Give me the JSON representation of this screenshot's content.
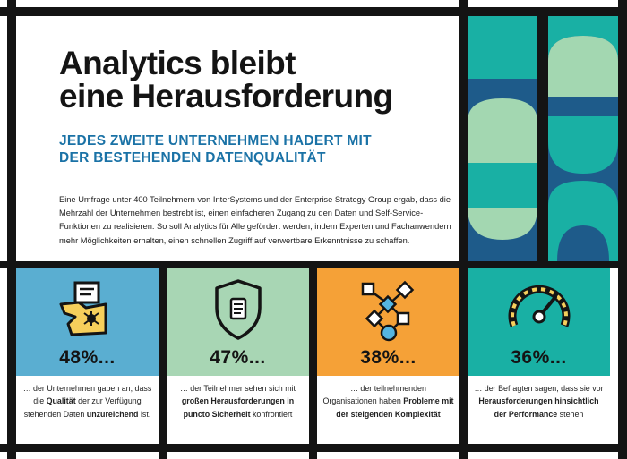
{
  "header": {
    "title_line1": "Analytics bleibt",
    "title_line2": "eine Herausforderung",
    "subtitle_line1": "JEDES ZWEITE UNTERNEHMEN HADERT MIT",
    "subtitle_line2": "DER BESTEHENDEN DATENQUALITÄT",
    "body": "Eine Umfrage unter 400 Teilnehmern von InterSystems und der Enterprise Strategy Group ergab, dass die Mehrzahl der Unternehmen bestrebt ist, einen einfacheren Zugang zu den Daten und Self-Service-Funktionen zu realisieren. So soll Analytics für Alle gefördert werden, indem Experten und Fachanwendern mehr Möglichkeiten erhalten, einen schnellen Zugriff auf verwertbare Erkenntnisse zu schaffen."
  },
  "colors": {
    "blue": "#5aaed1",
    "green": "#a8d6b4",
    "orange": "#f5a137",
    "teal": "#19b0a4",
    "navy": "#1e5b8a",
    "mint": "#a3d7b1",
    "dark": "#141414",
    "icon_yellow": "#f6cf5b",
    "icon_blue": "#56b5e0"
  },
  "stats": [
    {
      "value": "48%...",
      "icon": "chart-bug-icon",
      "desc": [
        {
          "t": "… der Unternehmen gaben an, dass die ",
          "b": false
        },
        {
          "t": "Qualität",
          "b": true
        },
        {
          "t": " der zur Verfügung stehenden Daten ",
          "b": false
        },
        {
          "t": "unzureichend",
          "b": true
        },
        {
          "t": " ist.",
          "b": false
        }
      ]
    },
    {
      "value": "47%...",
      "icon": "shield-document-icon",
      "desc": [
        {
          "t": "… der Teilnehmer sehen sich mit ",
          "b": false
        },
        {
          "t": "großen Herausforderungen in puncto Sicherheit",
          "b": true
        },
        {
          "t": " konfrontiert",
          "b": false
        }
      ]
    },
    {
      "value": "38%...",
      "icon": "network-complexity-icon",
      "desc": [
        {
          "t": "… der teilnehmenden Organisationen haben ",
          "b": false
        },
        {
          "t": "Probleme mit der steigenden Komplexität",
          "b": true
        }
      ]
    },
    {
      "value": "36%...",
      "icon": "speedometer-icon",
      "desc": [
        {
          "t": "… der Befragten sagen, dass sie vor ",
          "b": false
        },
        {
          "t": "Herausforderungen hinsichtlich der Performance",
          "b": true
        },
        {
          "t": " stehen",
          "b": false
        }
      ]
    }
  ]
}
